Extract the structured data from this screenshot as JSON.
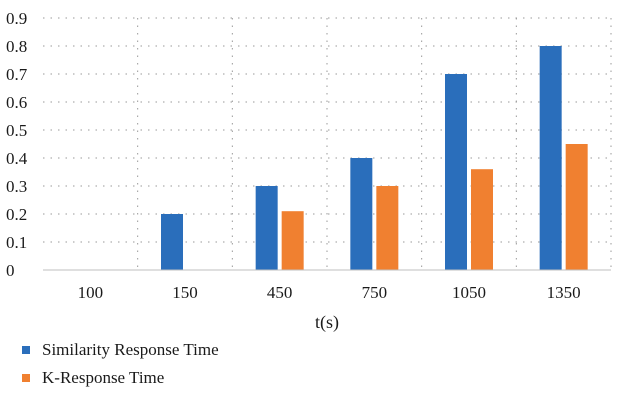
{
  "chart_data": {
    "type": "bar",
    "title": "",
    "xlabel": "t(s)",
    "ylabel": "",
    "categories": [
      "100",
      "150",
      "450",
      "750",
      "1050",
      "1350"
    ],
    "series": [
      {
        "name": "Similarity Response Time",
        "values": [
          0,
          0.2,
          0.3,
          0.4,
          0.7,
          0.8
        ],
        "color": "#2a6ebb"
      },
      {
        "name": "K-Response Time",
        "values": [
          0,
          0,
          0.21,
          0.3,
          0.36,
          0.45
        ],
        "color": "#f08030"
      }
    ],
    "ylim": [
      0,
      0.9
    ],
    "yticks": [
      "0",
      "0.1",
      "0.2",
      "0.3",
      "0.4",
      "0.5",
      "0.6",
      "0.7",
      "0.8",
      "0.9"
    ],
    "grid": "dotted",
    "legend_position": "bottom-left"
  }
}
